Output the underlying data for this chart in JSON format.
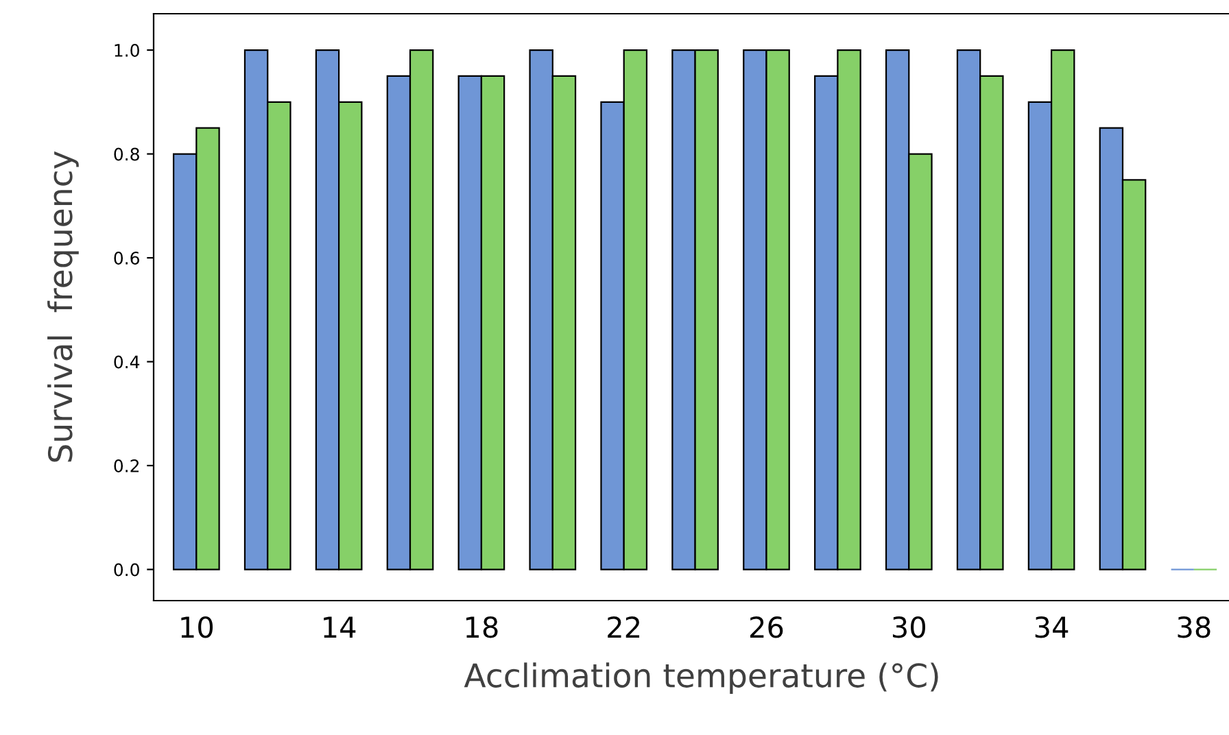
{
  "chart_data": {
    "type": "bar",
    "xlabel": "Acclimation temperature (°C)",
    "ylabel": "Survival  frequency",
    "categories": [
      "10",
      null,
      "14",
      null,
      "18",
      null,
      "22",
      null,
      "26",
      null,
      "30",
      null,
      "34",
      null,
      "38"
    ],
    "series": [
      {
        "color": "#6f96d6",
        "values": [
          0.8,
          1.0,
          1.0,
          0.95,
          0.95,
          1.0,
          0.9,
          1.0,
          1.0,
          0.95,
          1.0,
          1.0,
          0.9,
          0.85,
          0.0
        ]
      },
      {
        "color": "#86d068",
        "values": [
          0.85,
          0.9,
          0.9,
          1.0,
          0.95,
          0.95,
          1.0,
          1.0,
          1.0,
          1.0,
          0.8,
          0.95,
          1.0,
          0.75,
          0.0
        ]
      }
    ],
    "ylim": [
      -0.06,
      1.07
    ],
    "yticks": [
      {
        "value": 0,
        "label": "0.0"
      },
      {
        "value": 0.2,
        "label": "0.2"
      },
      {
        "value": 0.4,
        "label": "0.4"
      },
      {
        "value": 0.6,
        "label": "0.6"
      },
      {
        "value": 0.8,
        "label": "0.8"
      },
      {
        "value": 1.0,
        "label": "1.0"
      }
    ],
    "grid": false,
    "legend": false
  }
}
